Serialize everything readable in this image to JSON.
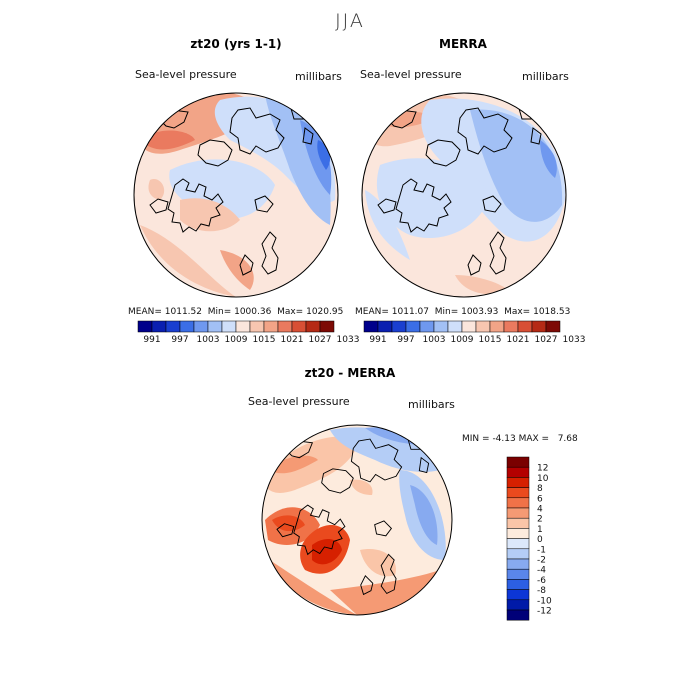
{
  "supertitle": "JJA",
  "panels": [
    {
      "title": "zt20 (yrs 1-1)",
      "variable": "Sea-level pressure",
      "units": "millibars",
      "mean_label": "MEAN=",
      "mean": "1011.52",
      "min_label": "Min=",
      "min": "1000.36",
      "max_label": "Max=",
      "max": "1020.95"
    },
    {
      "title": "MERRA",
      "variable": "Sea-level pressure",
      "units": "millibars",
      "mean_label": "MEAN=",
      "mean": "1011.07",
      "min_label": "Min=",
      "min": "1003.93",
      "max_label": "Max=",
      "max": "1018.53"
    },
    {
      "title": "zt20 - MERRA",
      "variable": "Sea-level pressure",
      "units": "millibars",
      "min_label": "MIN =",
      "min": "-4.13",
      "max_label": "MAX =",
      "max": "7.68"
    }
  ],
  "colors": {
    "abs_scale": [
      "#00008b",
      "#0a1fb0",
      "#1a3fd0",
      "#3b6ee6",
      "#6f98ef",
      "#a2c0f5",
      "#cfdffa",
      "#fbe6dc",
      "#f7c6b0",
      "#f2a487",
      "#ea7a5f",
      "#d84f35",
      "#b52a15",
      "#7d0a05"
    ],
    "diff_scale": [
      "#7a0000",
      "#b30000",
      "#d62000",
      "#ea4a1e",
      "#f07248",
      "#f59a74",
      "#fac5a8",
      "#fdebdd",
      "#dce8fb",
      "#b4cdf6",
      "#87aaf0",
      "#5a86ea",
      "#2c5fe3",
      "#0c36d6",
      "#001aa8",
      "#000078"
    ]
  },
  "chart_data": [
    {
      "type": "heatmap",
      "title": "zt20 (yrs 1-1)",
      "projection": "north-polar-stereographic",
      "variable": "Sea-level pressure",
      "units": "millibars",
      "colorbar_ticks": [
        "991",
        "997",
        "1003",
        "1009",
        "1015",
        "1021",
        "1027",
        "1033"
      ],
      "mean": 1011.52,
      "min": 1000.36,
      "max": 1020.95,
      "field": [
        {
          "lon": 0,
          "lat": 90,
          "value": 1013
        },
        {
          "lon": -60,
          "lat": 55,
          "value": 1014
        },
        {
          "lon": -35,
          "lat": 65,
          "value": 1017
        },
        {
          "lon": -10,
          "lat": 55,
          "value": 1018
        },
        {
          "lon": 50,
          "lat": 70,
          "value": 1011
        },
        {
          "lon": 100,
          "lat": 55,
          "value": 1007
        },
        {
          "lon": 120,
          "lat": 50,
          "value": 1004
        },
        {
          "lon": 160,
          "lat": 60,
          "value": 1009
        },
        {
          "lon": -160,
          "lat": 55,
          "value": 1018
        },
        {
          "lon": -100,
          "lat": 45,
          "value": 1013
        }
      ]
    },
    {
      "type": "heatmap",
      "title": "MERRA",
      "projection": "north-polar-stereographic",
      "variable": "Sea-level pressure",
      "units": "millibars",
      "colorbar_ticks": [
        "991",
        "997",
        "1003",
        "1009",
        "1015",
        "1021",
        "1027",
        "1033"
      ],
      "mean": 1011.07,
      "min": 1003.93,
      "max": 1018.53,
      "field": [
        {
          "lon": 0,
          "lat": 90,
          "value": 1010
        },
        {
          "lon": -60,
          "lat": 55,
          "value": 1013
        },
        {
          "lon": -35,
          "lat": 65,
          "value": 1012
        },
        {
          "lon": -10,
          "lat": 55,
          "value": 1014
        },
        {
          "lon": 50,
          "lat": 70,
          "value": 1010
        },
        {
          "lon": 100,
          "lat": 55,
          "value": 1007
        },
        {
          "lon": 120,
          "lat": 50,
          "value": 1006
        },
        {
          "lon": 160,
          "lat": 60,
          "value": 1010
        },
        {
          "lon": -160,
          "lat": 55,
          "value": 1017
        },
        {
          "lon": -100,
          "lat": 45,
          "value": 1013
        }
      ]
    },
    {
      "type": "heatmap",
      "title": "zt20 - MERRA",
      "projection": "north-polar-stereographic",
      "variable": "Sea-level pressure",
      "units": "millibars",
      "colorbar_ticks": [
        "12",
        "10",
        "8",
        "6",
        "4",
        "2",
        "1",
        "0",
        "-1",
        "-2",
        "-4",
        "-6",
        "-8",
        "-10",
        "-12"
      ],
      "min": -4.13,
      "max": 7.68,
      "field": [
        {
          "lon": 0,
          "lat": 90,
          "value": 1.5
        },
        {
          "lon": -35,
          "lat": 65,
          "value": 5
        },
        {
          "lon": -60,
          "lat": 55,
          "value": 2
        },
        {
          "lon": -10,
          "lat": 55,
          "value": 3
        },
        {
          "lon": 50,
          "lat": 70,
          "value": 1
        },
        {
          "lon": 100,
          "lat": 55,
          "value": -1
        },
        {
          "lon": 120,
          "lat": 50,
          "value": -3
        },
        {
          "lon": 160,
          "lat": 60,
          "value": -2
        },
        {
          "lon": -160,
          "lat": 55,
          "value": 1
        },
        {
          "lon": -100,
          "lat": 45,
          "value": 0
        }
      ]
    }
  ]
}
